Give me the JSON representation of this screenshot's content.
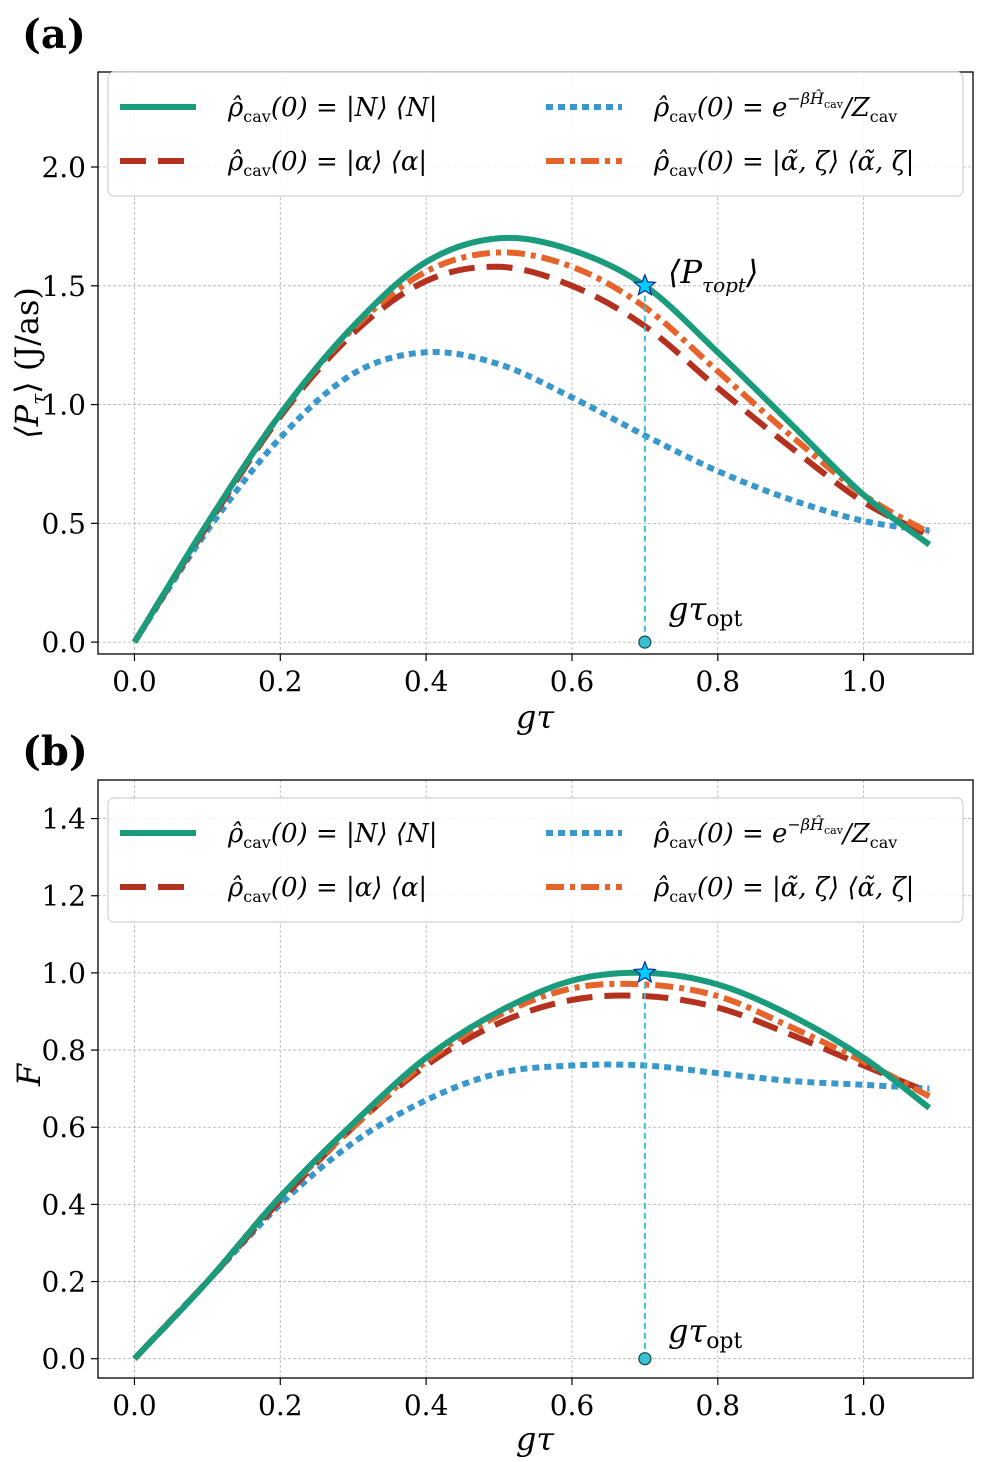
{
  "figure": {
    "colors": {
      "fock": "#1a9b7c",
      "coherent": "#b5311f",
      "thermal": "#3998cb",
      "squeezed": "#e6632a",
      "guide": "#3cc0d0",
      "star": "#00ccff",
      "grid": "#b0b0b0"
    }
  },
  "chart_data": [
    {
      "type": "line",
      "panel_label": "(a)",
      "xlabel": "gτ",
      "ylabel": "⟨P_τ⟩ (J/as)",
      "ylabel_main": "⟨P",
      "ylabel_sub": "τ",
      "ylabel_rest": "⟩ (J/as)",
      "xlim": [
        -0.05,
        1.15
      ],
      "ylim": [
        -0.05,
        2.4
      ],
      "xticks": [
        0.0,
        0.2,
        0.4,
        0.6,
        0.8,
        1.0
      ],
      "xtick_labels": [
        "0.0",
        "0.2",
        "0.4",
        "0.6",
        "0.8",
        "1.0"
      ],
      "yticks": [
        0.0,
        0.5,
        1.0,
        1.5,
        2.0
      ],
      "ytick_labels": [
        "0.0",
        "0.5",
        "1.0",
        "1.5",
        "2.0"
      ],
      "grid": true,
      "legend_position": "top",
      "x": [
        0.0,
        0.1,
        0.2,
        0.3,
        0.4,
        0.5,
        0.6,
        0.7,
        0.8,
        0.9,
        1.0,
        1.09
      ],
      "series": [
        {
          "name": "ρ̂cav(0) = |N⟩⟨N|",
          "key": "fock",
          "values": [
            0.0,
            0.5,
            0.96,
            1.33,
            1.6,
            1.7,
            1.65,
            1.5,
            1.22,
            0.92,
            0.62,
            0.41
          ]
        },
        {
          "name": "ρ̂cav(0) = |α⟩⟨α|",
          "key": "coherent",
          "values": [
            0.0,
            0.49,
            0.95,
            1.3,
            1.52,
            1.58,
            1.5,
            1.33,
            1.07,
            0.82,
            0.59,
            0.45
          ]
        },
        {
          "name": "ρ̂cav(0) = e^{-βĤcav}/Zcav",
          "key": "thermal",
          "values": [
            0.0,
            0.47,
            0.86,
            1.13,
            1.22,
            1.17,
            1.03,
            0.87,
            0.72,
            0.6,
            0.51,
            0.47
          ]
        },
        {
          "name": "ρ̂cav(0) = |α̃,ζ⟩⟨α̃,ζ|",
          "key": "squeezed",
          "values": [
            0.0,
            0.5,
            0.96,
            1.32,
            1.56,
            1.64,
            1.58,
            1.41,
            1.14,
            0.87,
            0.62,
            0.46
          ]
        }
      ],
      "optimum": {
        "x": 0.7,
        "y": 1.5,
        "label": "⟨P",
        "label_sub": "τopt",
        "label_end": "⟩"
      },
      "guide_label": "gτ",
      "guide_label_sub": "opt"
    },
    {
      "type": "line",
      "panel_label": "(b)",
      "xlabel": "gτ",
      "ylabel": "F",
      "xlim": [
        -0.05,
        1.15
      ],
      "ylim": [
        -0.05,
        1.5
      ],
      "xticks": [
        0.0,
        0.2,
        0.4,
        0.6,
        0.8,
        1.0
      ],
      "xtick_labels": [
        "0.0",
        "0.2",
        "0.4",
        "0.6",
        "0.8",
        "1.0"
      ],
      "yticks": [
        0.0,
        0.2,
        0.4,
        0.6,
        0.8,
        1.0,
        1.2,
        1.4
      ],
      "ytick_labels": [
        "0.0",
        "0.2",
        "0.4",
        "0.6",
        "0.8",
        "1.0",
        "1.2",
        "1.4"
      ],
      "grid": true,
      "legend_position": "top",
      "x": [
        0.0,
        0.1,
        0.2,
        0.3,
        0.4,
        0.5,
        0.6,
        0.7,
        0.8,
        0.9,
        1.0,
        1.09
      ],
      "series": [
        {
          "name": "ρ̂cav(0) = |N⟩⟨N|",
          "key": "fock",
          "values": [
            0.0,
            0.2,
            0.42,
            0.61,
            0.78,
            0.9,
            0.98,
            1.0,
            0.97,
            0.89,
            0.78,
            0.65
          ]
        },
        {
          "name": "ρ̂cav(0) = |α⟩⟨α|",
          "key": "coherent",
          "values": [
            0.0,
            0.2,
            0.41,
            0.6,
            0.76,
            0.87,
            0.93,
            0.94,
            0.91,
            0.84,
            0.76,
            0.69
          ]
        },
        {
          "name": "ρ̂cav(0) = e^{-βĤcav}/Zcav",
          "key": "thermal",
          "values": [
            0.0,
            0.2,
            0.4,
            0.56,
            0.67,
            0.74,
            0.76,
            0.76,
            0.74,
            0.72,
            0.71,
            0.7
          ]
        },
        {
          "name": "ρ̂cav(0) = |α̃,ζ⟩⟨α̃,ζ|",
          "key": "squeezed",
          "values": [
            0.0,
            0.2,
            0.42,
            0.6,
            0.77,
            0.89,
            0.96,
            0.97,
            0.94,
            0.86,
            0.77,
            0.68
          ]
        }
      ],
      "optimum": {
        "x": 0.7,
        "y": 1.0
      },
      "guide_label": "gτ",
      "guide_label_sub": "opt"
    }
  ],
  "legend": {
    "entries": [
      {
        "key": "fock",
        "style": "solid",
        "lhs": "ρ̂",
        "sub": "cav",
        "rhs": "(0) = |N⟩ ⟨N|"
      },
      {
        "key": "thermal",
        "style": "dotted",
        "lhs": "ρ̂",
        "sub": "cav",
        "rhs": "(0) = e",
        "sup": "−βĤ",
        "supsub": "cav",
        "rhs2": "/Z",
        "sub2": "cav"
      },
      {
        "key": "coherent",
        "style": "dashed",
        "lhs": "ρ̂",
        "sub": "cav",
        "rhs": "(0) = |α⟩ ⟨α|"
      },
      {
        "key": "squeezed",
        "style": "dashdot",
        "lhs": "ρ̂",
        "sub": "cav",
        "rhs": "(0) = |α̃, ζ⟩ ⟨α̃, ζ|"
      }
    ]
  }
}
